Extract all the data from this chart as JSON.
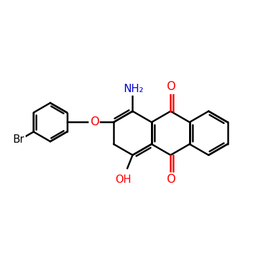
{
  "background_color": "#ffffff",
  "bond_color": "#000000",
  "bond_width": 1.8,
  "atom_colors": {
    "O": "#ff0000",
    "N": "#0000cc",
    "Br": "#000000",
    "C": "#000000"
  },
  "font_size": 11
}
